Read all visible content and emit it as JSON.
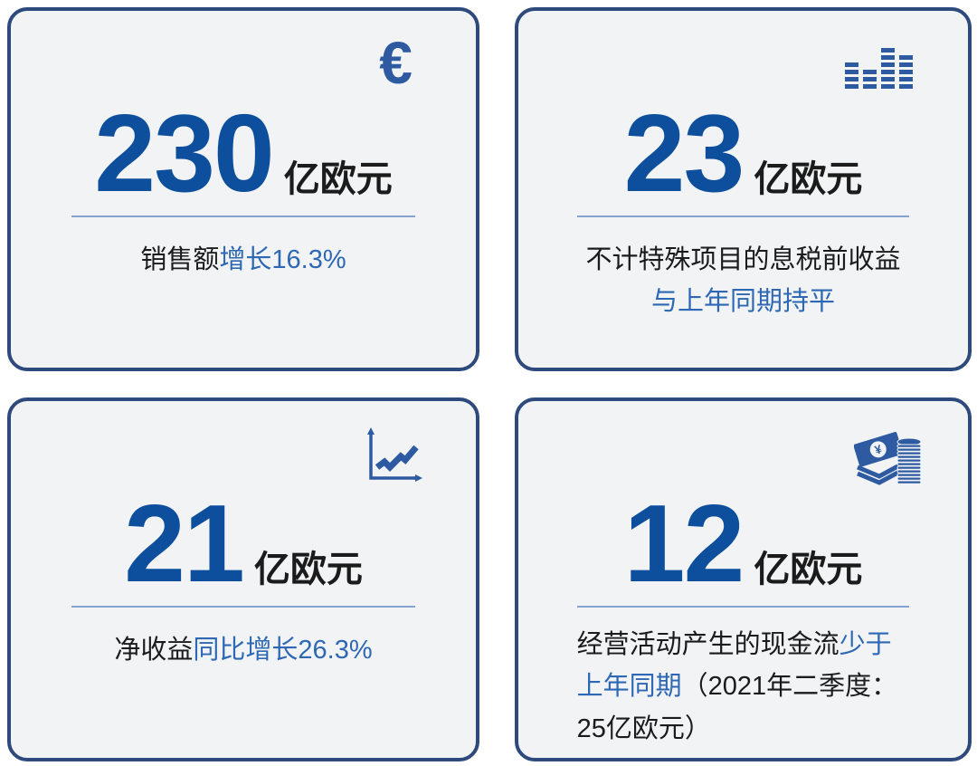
{
  "colors": {
    "page_bg": "#ffffff",
    "card_bg": "#f1f3f5",
    "card_border": "#2e4a7c",
    "number": "#0d4f9c",
    "accent": "#2e68b4",
    "dark": "#1b1b1b",
    "divider": "#86a2cf",
    "icon": "#2d5aa0"
  },
  "cards": [
    {
      "id": "sales",
      "icon": "euro-icon",
      "icon_glyph": "€",
      "value": "230",
      "unit": "亿欧元",
      "subtitle": [
        {
          "text": "销售额",
          "style": "dark"
        },
        {
          "text": "增长16.3%",
          "style": "accent"
        }
      ]
    },
    {
      "id": "ebit",
      "icon": "equalizer-bars-icon",
      "value": "23",
      "unit": "亿欧元",
      "subtitle": [
        {
          "text": "不计特殊项目的息税前收益",
          "style": "dark",
          "block": true
        },
        {
          "text": "与上年同期持平",
          "style": "accent",
          "block": true
        }
      ]
    },
    {
      "id": "net-income",
      "icon": "line-chart-icon",
      "value": "21",
      "unit": "亿欧元",
      "subtitle": [
        {
          "text": "净收益",
          "style": "dark"
        },
        {
          "text": "同比增长26.3%",
          "style": "accent"
        }
      ]
    },
    {
      "id": "cashflow",
      "icon": "money-icon",
      "coin_glyph": "¥",
      "value": "12",
      "unit": "亿欧元",
      "subtitle": [
        {
          "text": "经营活动产生的现金流",
          "style": "dark"
        },
        {
          "text": "少于上年同期",
          "style": "accent"
        },
        {
          "text": "（2021年二季度：25亿欧元）",
          "style": "dark"
        }
      ]
    }
  ]
}
